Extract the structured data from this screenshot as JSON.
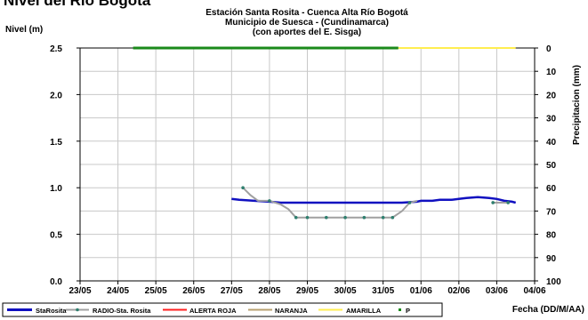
{
  "page": {
    "cut_heading": "Nivel del Río Bogotá"
  },
  "chart_data": {
    "type": "line",
    "title": [
      "Estación Santa Rosita - Cuenca Alta Río Bogotá",
      "Municipio de Suesca - (Cundinamarca)",
      "(con aportes del  E. Sisga)"
    ],
    "ylabel": "Nivel (m)",
    "y2label": "Precipitacion (mm)",
    "xlabel": "Fecha (DD/M/AA)",
    "ylim": [
      0.0,
      2.5
    ],
    "yticks": [
      "0.0",
      "0.5",
      "1.0",
      "1.5",
      "2.0",
      "2.5"
    ],
    "y2lim": [
      0,
      100
    ],
    "y2_reversed": true,
    "y2ticks": [
      "0",
      "10",
      "20",
      "30",
      "40",
      "50",
      "60",
      "70",
      "80",
      "90",
      "100"
    ],
    "x_categories": [
      "23/05",
      "24/05",
      "25/05",
      "26/05",
      "27/05",
      "28/05",
      "29/05",
      "30/05",
      "31/05",
      "01/06",
      "02/06",
      "03/06",
      "04/06"
    ],
    "legend_position": "bottom",
    "grid": true,
    "series": [
      {
        "name": "StaRosita",
        "color": "#1010c0",
        "axis": "left",
        "style": "line",
        "points": [
          [
            4.0,
            0.88
          ],
          [
            4.2,
            0.87
          ],
          [
            4.6,
            0.86
          ],
          [
            5.0,
            0.85
          ],
          [
            5.3,
            0.84
          ],
          [
            5.6,
            0.84
          ],
          [
            6.0,
            0.84
          ],
          [
            6.5,
            0.84
          ],
          [
            7.0,
            0.84
          ],
          [
            7.5,
            0.84
          ],
          [
            8.0,
            0.84
          ],
          [
            8.5,
            0.84
          ],
          [
            8.9,
            0.85
          ],
          [
            9.0,
            0.86
          ],
          [
            9.3,
            0.86
          ],
          [
            9.5,
            0.87
          ],
          [
            9.8,
            0.87
          ],
          [
            10.0,
            0.88
          ],
          [
            10.2,
            0.89
          ],
          [
            10.5,
            0.9
          ],
          [
            10.8,
            0.89
          ],
          [
            11.0,
            0.88
          ],
          [
            11.2,
            0.86
          ],
          [
            11.4,
            0.85
          ],
          [
            11.5,
            0.84
          ]
        ]
      },
      {
        "name": "RADIO-Sta. Rosita",
        "color": "#a0a0a0",
        "marker_color": "#2f7f6f",
        "axis": "left",
        "style": "line-markers",
        "points": [
          [
            4.3,
            1.0
          ],
          [
            4.5,
            0.92
          ],
          [
            4.7,
            0.86
          ],
          [
            5.0,
            0.86
          ],
          [
            5.3,
            0.82
          ],
          [
            5.5,
            0.77
          ],
          [
            5.7,
            0.68
          ],
          [
            6.0,
            0.68
          ],
          [
            6.25,
            0.68
          ],
          [
            6.5,
            0.68
          ],
          [
            6.75,
            0.68
          ],
          [
            7.0,
            0.68
          ],
          [
            7.25,
            0.68
          ],
          [
            7.5,
            0.68
          ],
          [
            7.75,
            0.68
          ],
          [
            8.0,
            0.68
          ],
          [
            8.25,
            0.68
          ],
          [
            8.5,
            0.75
          ],
          [
            8.7,
            0.84
          ],
          [
            8.9,
            0.86
          ]
        ],
        "markers": [
          [
            4.3,
            1.0
          ],
          [
            5.0,
            0.86
          ],
          [
            5.7,
            0.68
          ],
          [
            6.0,
            0.68
          ],
          [
            6.5,
            0.68
          ],
          [
            7.0,
            0.68
          ],
          [
            7.5,
            0.68
          ],
          [
            8.0,
            0.68
          ],
          [
            8.25,
            0.68
          ],
          [
            8.7,
            0.84
          ]
        ],
        "tail_points": [
          [
            10.9,
            0.84
          ],
          [
            11.3,
            0.84
          ]
        ],
        "tail_markers": [
          [
            10.9,
            0.84
          ],
          [
            11.3,
            0.84
          ]
        ]
      },
      {
        "name": "ALERTA ROJA",
        "color": "#ff2020",
        "axis": "left",
        "style": "line",
        "points": []
      },
      {
        "name": "NARANJA",
        "color": "#b8a070",
        "axis": "left",
        "style": "line",
        "points": []
      },
      {
        "name": "AMARILLA",
        "color": "#ffee50",
        "axis": "right",
        "style": "line",
        "points": [
          [
            8.4,
            0
          ],
          [
            11.5,
            0
          ]
        ]
      },
      {
        "name": "P",
        "color": "#1a8a1a",
        "axis": "right",
        "style": "dots",
        "points": [
          [
            1.4,
            0
          ],
          [
            8.4,
            0
          ]
        ]
      }
    ]
  }
}
